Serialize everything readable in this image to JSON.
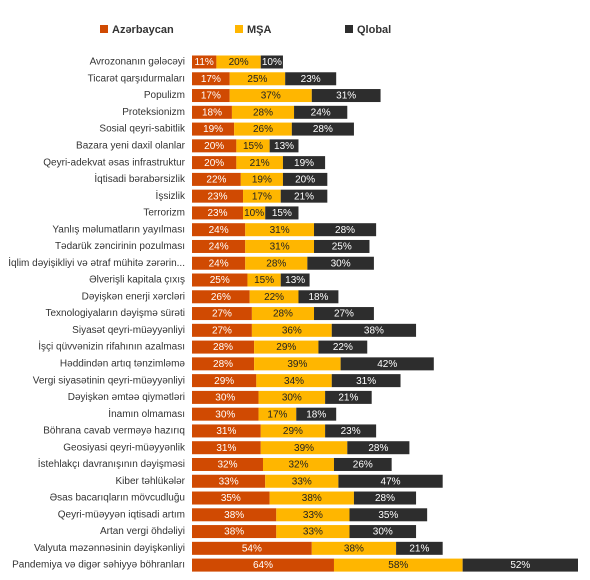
{
  "chart_data": {
    "type": "stacked-bar",
    "orientation": "horizontal",
    "legend_position": "top",
    "categories": [
      "Avrozonanın gələcəyi",
      "Ticarət qarşıdurmaları",
      "Populizm",
      "Proteksionizm",
      "Sosial qeyri-sabitlik",
      "Bazara yeni daxil olanlar",
      "Qeyri-adekvat əsas infrastruktur",
      "İqtisadi bərabərsizlik",
      "İşsizlik",
      "Terrorizm",
      "Yanlış məlumatların yayılması",
      "Tədarük zəncirinin pozulması",
      "İqlim dəyişikliyi və ətraf mühitə zərərin...",
      "Əlverişli kapitala çıxış",
      "Dəyişkən enerji xərcləri",
      "Texnologiyaların dəyişmə sürəti",
      "Siyasət qeyri-müəyyənliyi",
      "İşçi qüvvənizin rifahının azalması",
      "Həddindən artıq tənzimləmə",
      "Vergi siyasətinin qeyri-müəyyənliyi",
      "Dəyişkən əmtəə qiymətləri",
      "İnamın olmaması",
      "Böhrana cavab verməyə hazırıq",
      "Geosiyasi qeyri-müəyyənlik",
      "İstehlakçı davranışının dəyişməsi",
      "Kiber təhlükələr",
      "Əsas bacarıqların mövcudluğu",
      "Qeyri-müəyyən iqtisadi artım",
      "Artan vergi öhdəliyi",
      "Valyuta məzənnəsinin dəyişkənliyi",
      "Pandemiya və digər səhiyyə böhranları"
    ],
    "series": [
      {
        "name": "Azərbaycan",
        "color": "#d04a02",
        "label_color": "#ffffff",
        "values": [
          11,
          17,
          17,
          18,
          19,
          20,
          20,
          22,
          23,
          23,
          24,
          24,
          24,
          25,
          26,
          27,
          27,
          28,
          28,
          29,
          30,
          30,
          31,
          31,
          32,
          33,
          35,
          38,
          38,
          54,
          64
        ],
        "value_labels": [
          "11%",
          "17%",
          "17%",
          "18%",
          "19%",
          "20%",
          "20%",
          "22%",
          "23%",
          "23%",
          "24%",
          "24%",
          "24%",
          "25%",
          "26%",
          "27%",
          "27%",
          "28%",
          "28%",
          "29%",
          "30%",
          "30%",
          "31%",
          "31%",
          "32%",
          "33%",
          "35%",
          "38%",
          "38%",
          "54%",
          "64%"
        ]
      },
      {
        "name": "MŞA",
        "color": "#ffb600",
        "label_color": "#222222",
        "values": [
          20,
          25,
          37,
          28,
          26,
          15,
          21,
          19,
          17,
          10,
          31,
          31,
          28,
          15,
          22,
          28,
          36,
          29,
          39,
          34,
          30,
          17,
          29,
          39,
          32,
          33,
          38,
          33,
          33,
          38,
          58
        ],
        "value_labels": [
          "20%",
          "25%",
          "37%",
          "28%",
          "26%",
          "15%",
          "21%",
          "19%",
          "17%",
          "10%",
          "31%",
          "31%",
          "28%",
          "15%",
          "22%",
          "28%",
          "36%",
          "29%",
          "39%",
          "34%",
          "30%",
          "17%",
          "29%",
          "39%",
          "32%",
          "33%",
          "38%",
          "33%",
          "33%",
          "38%",
          "58%"
        ]
      },
      {
        "name": "Qlobal",
        "color": "#2d2d2d",
        "label_color": "#ffffff",
        "values": [
          10,
          23,
          31,
          24,
          28,
          13,
          19,
          20,
          21,
          15,
          28,
          25,
          30,
          13,
          18,
          27,
          38,
          22,
          42,
          31,
          21,
          18,
          23,
          28,
          26,
          47,
          28,
          35,
          30,
          21,
          52
        ],
        "value_labels": [
          "10%",
          "23%",
          "31%",
          "24%",
          "28%",
          "13%",
          "19%",
          "20%",
          "21%",
          "15%",
          "28%",
          "25%",
          "30%",
          "13%",
          "18%",
          "27%",
          "38%",
          "22%",
          "42%",
          "31%",
          "21%",
          "18%",
          "23%",
          "28%",
          "26%",
          "47%",
          "28%",
          "35%",
          "30%",
          "21%",
          "52%"
        ]
      }
    ]
  }
}
